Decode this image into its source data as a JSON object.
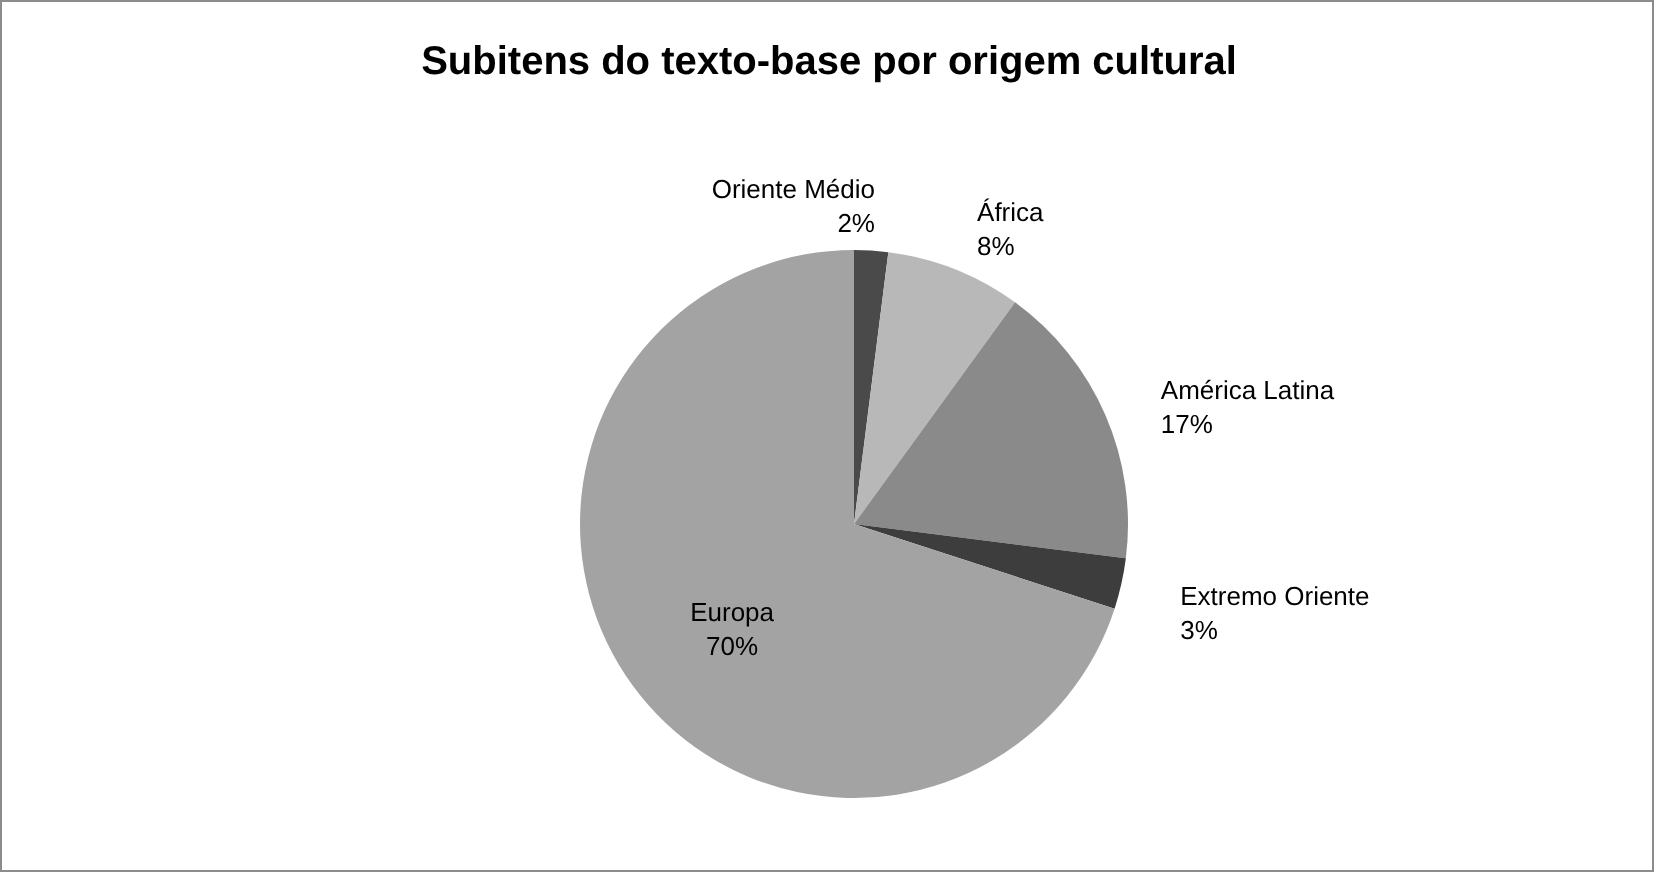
{
  "chart_data": {
    "type": "pie",
    "title": "Subitens do texto-base por origem cultural",
    "categories": [
      "Oriente Médio",
      "África",
      "América Latina",
      "Extremo Oriente",
      "Europa"
    ],
    "values": [
      2,
      8,
      17,
      3,
      70
    ],
    "value_labels": [
      "2%",
      "8%",
      "17%",
      "3%",
      "70%"
    ],
    "colors": [
      "#4a4a4a",
      "#b8b8b8",
      "#8a8a8a",
      "#3d3d3d",
      "#a3a3a3"
    ],
    "legend": false
  }
}
